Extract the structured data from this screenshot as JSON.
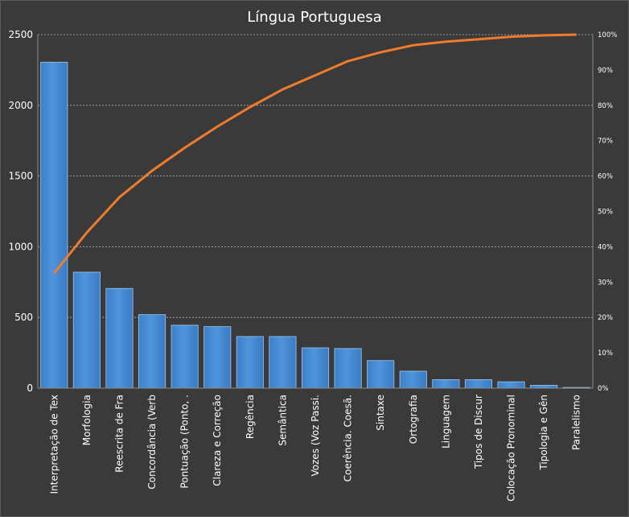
{
  "chart_data": {
    "type": "bar",
    "title": "Língua Portuguesa",
    "categories": [
      "Interpretação de Tex",
      "Morfologia",
      "Reescrita de Fra",
      "Concordância (Verb",
      "Pontuação (Ponto, .",
      "Clareza e Correção",
      "Regência",
      "Semântica",
      "Vozes (Voz Passi.",
      "Coerência. Coesã.",
      "Sintaxe",
      "Ortografia",
      "Linguagem",
      "Tipos de Discur",
      "Colocação Pronominal",
      "Tipologia e Gên",
      "Paralelismo"
    ],
    "series": [
      {
        "type": "bar",
        "color": "#4f94dc",
        "values": [
          2305,
          820,
          705,
          520,
          445,
          435,
          365,
          365,
          285,
          280,
          195,
          120,
          60,
          60,
          45,
          20,
          5
        ]
      },
      {
        "type": "line",
        "axis": "right",
        "color": "#ef7c2c",
        "values": [
          32.5,
          44.0,
          54.0,
          61.5,
          68.0,
          74.0,
          79.5,
          84.5,
          88.5,
          92.5,
          95.0,
          97.0,
          98.0,
          98.7,
          99.4,
          99.8,
          100
        ]
      }
    ],
    "y_left": {
      "min": 0,
      "max": 2500,
      "ticks": [
        0,
        500,
        1000,
        1500,
        2000,
        2500
      ]
    },
    "y_right": {
      "min": 0,
      "max": 100,
      "ticks": [
        "0%",
        "10%",
        "20%",
        "30%",
        "40%",
        "50%",
        "60%",
        "70%",
        "80%",
        "90%",
        "100%"
      ]
    },
    "grid": true,
    "legend": "none",
    "colors": {
      "background": "#3a3a3a",
      "text": "#ffffff",
      "grid": "#bcbcbc"
    }
  }
}
